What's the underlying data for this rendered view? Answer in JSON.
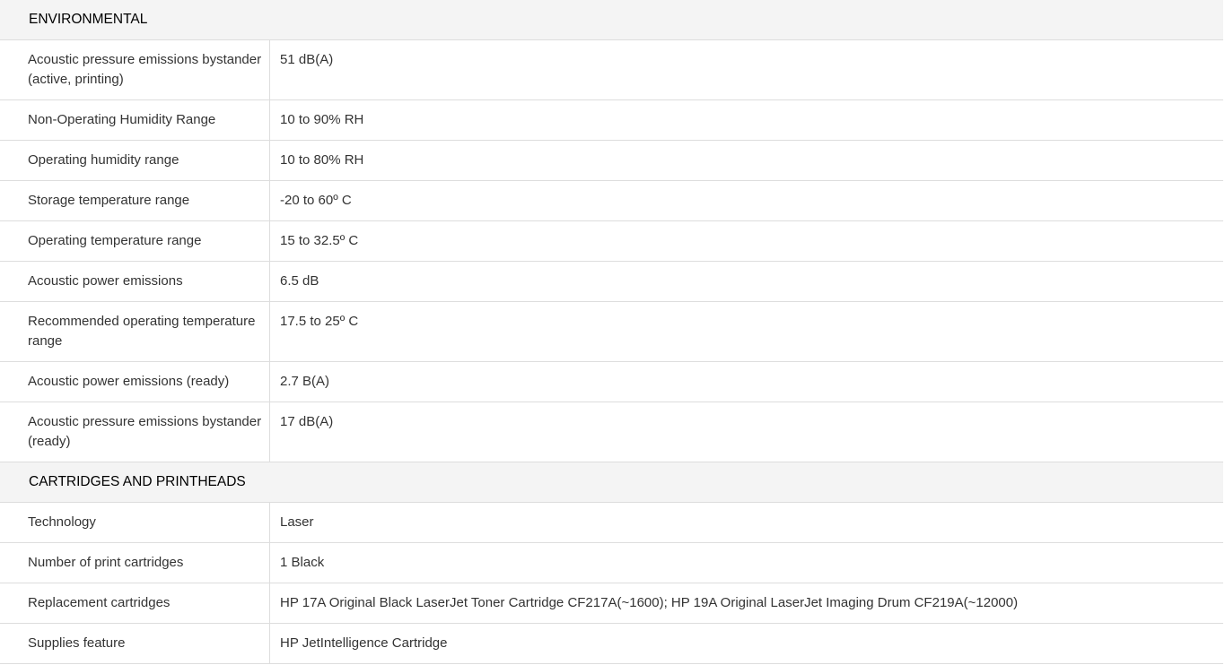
{
  "sections": [
    {
      "title": "ENVIRONMENTAL",
      "rows": [
        {
          "label": "Acoustic pressure emissions bystander (active, printing)",
          "value": "51 dB(A)"
        },
        {
          "label": "Non-Operating Humidity Range",
          "value": "10 to 90% RH"
        },
        {
          "label": "Operating humidity range",
          "value": "10 to 80% RH"
        },
        {
          "label": "Storage temperature range",
          "value": "-20 to 60º C"
        },
        {
          "label": "Operating temperature range",
          "value": "15 to 32.5º C"
        },
        {
          "label": "Acoustic power emissions",
          "value": "6.5 dB"
        },
        {
          "label": "Recommended operating temperature range",
          "value": "17.5 to 25º C"
        },
        {
          "label": "Acoustic power emissions (ready)",
          "value": "2.7 B(A)"
        },
        {
          "label": "Acoustic pressure emissions bystander (ready)",
          "value": "17 dB(A)"
        }
      ]
    },
    {
      "title": "CARTRIDGES AND PRINTHEADS",
      "rows": [
        {
          "label": "Technology",
          "value": "Laser"
        },
        {
          "label": "Number of print cartridges",
          "value": "1 Black"
        },
        {
          "label": "Replacement cartridges",
          "value": "HP 17A Original Black LaserJet Toner Cartridge CF217A(~1600); HP 19A Original LaserJet Imaging Drum CF219A(~12000)"
        },
        {
          "label": "Supplies feature",
          "value": "HP JetIntelligence Cartridge"
        }
      ]
    }
  ]
}
